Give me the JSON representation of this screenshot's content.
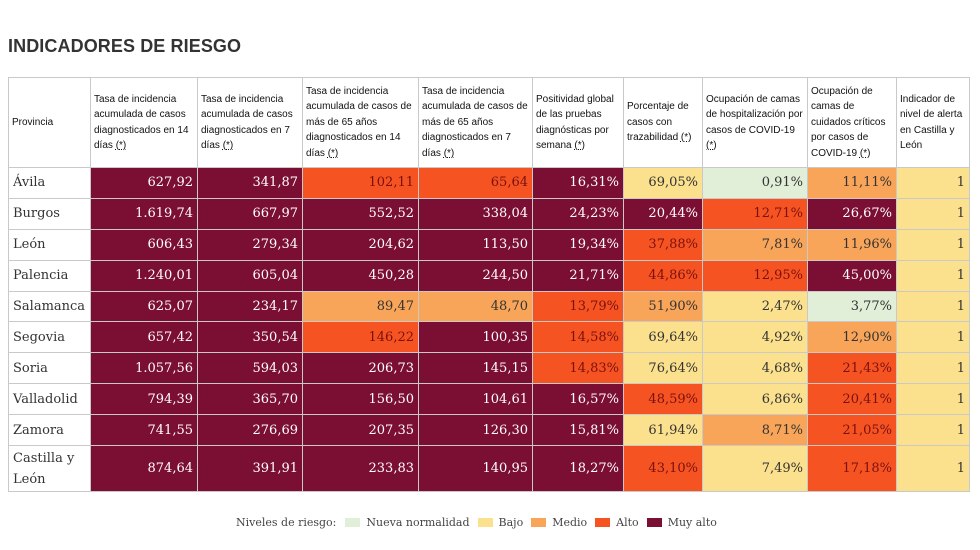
{
  "title": "INDICADORES DE RIESGO",
  "ref_mark": "(*)",
  "colors": {
    "nueva_normalidad": "#e1efd8",
    "bajo": "#fbe08d",
    "medio": "#f8a55a",
    "alto": "#f55422",
    "muy_alto": "#7b0e33"
  },
  "headers": [
    {
      "text": "Provincia",
      "ref": false
    },
    {
      "text": "Tasa de incidencia acumulada de casos diagnosticados en 14 días ",
      "ref": true
    },
    {
      "text": "Tasa de incidencia acumulada de casos diagnosticados en 7 días ",
      "ref": true
    },
    {
      "text": "Tasa de incidencia acumulada de casos de más de 65 años diagnosticados en 14 días ",
      "ref": true
    },
    {
      "text": "Tasa de incidencia acumulada de casos de más de 65 años diagnosticados en 7 días ",
      "ref": true
    },
    {
      "text": "Positividad global de las pruebas diagnósticas por semana ",
      "ref": true
    },
    {
      "text": "Porcentaje de casos con trazabilidad ",
      "ref": true
    },
    {
      "text": "Ocupación de camas de hospitalización por casos de COVID-19 ",
      "ref": true
    },
    {
      "text": "Ocupación de camas de cuidados críticos por casos de COVID-19 ",
      "ref": true
    },
    {
      "text": "Indicador de nivel de alerta en Castilla y León",
      "ref": false
    }
  ],
  "rows": [
    {
      "provincia": "Ávila",
      "cells": [
        {
          "v": "627,92",
          "l": "ma"
        },
        {
          "v": "341,87",
          "l": "ma"
        },
        {
          "v": "102,11",
          "l": "a"
        },
        {
          "v": "65,64",
          "l": "a"
        },
        {
          "v": "16,31%",
          "l": "ma"
        },
        {
          "v": "69,05%",
          "l": "b"
        },
        {
          "v": "0,91%",
          "l": "nn"
        },
        {
          "v": "11,11%",
          "l": "m"
        },
        {
          "v": "1",
          "l": "b"
        }
      ]
    },
    {
      "provincia": "Burgos",
      "cells": [
        {
          "v": "1.619,74",
          "l": "ma"
        },
        {
          "v": "667,97",
          "l": "ma"
        },
        {
          "v": "552,52",
          "l": "ma"
        },
        {
          "v": "338,04",
          "l": "ma"
        },
        {
          "v": "24,23%",
          "l": "ma"
        },
        {
          "v": "20,44%",
          "l": "ma"
        },
        {
          "v": "12,71%",
          "l": "a"
        },
        {
          "v": "26,67%",
          "l": "ma"
        },
        {
          "v": "1",
          "l": "b"
        }
      ]
    },
    {
      "provincia": "León",
      "cells": [
        {
          "v": "606,43",
          "l": "ma"
        },
        {
          "v": "279,34",
          "l": "ma"
        },
        {
          "v": "204,62",
          "l": "ma"
        },
        {
          "v": "113,50",
          "l": "ma"
        },
        {
          "v": "19,34%",
          "l": "ma"
        },
        {
          "v": "37,88%",
          "l": "a"
        },
        {
          "v": "7,81%",
          "l": "m"
        },
        {
          "v": "11,96%",
          "l": "m"
        },
        {
          "v": "1",
          "l": "b"
        }
      ]
    },
    {
      "provincia": "Palencia",
      "cells": [
        {
          "v": "1.240,01",
          "l": "ma"
        },
        {
          "v": "605,04",
          "l": "ma"
        },
        {
          "v": "450,28",
          "l": "ma"
        },
        {
          "v": "244,50",
          "l": "ma"
        },
        {
          "v": "21,71%",
          "l": "ma"
        },
        {
          "v": "44,86%",
          "l": "a"
        },
        {
          "v": "12,95%",
          "l": "a"
        },
        {
          "v": "45,00%",
          "l": "ma"
        },
        {
          "v": "1",
          "l": "b"
        }
      ]
    },
    {
      "provincia": "Salamanca",
      "cells": [
        {
          "v": "625,07",
          "l": "ma"
        },
        {
          "v": "234,17",
          "l": "ma"
        },
        {
          "v": "89,47",
          "l": "m"
        },
        {
          "v": "48,70",
          "l": "m"
        },
        {
          "v": "13,79%",
          "l": "a"
        },
        {
          "v": "51,90%",
          "l": "m"
        },
        {
          "v": "2,47%",
          "l": "b"
        },
        {
          "v": "3,77%",
          "l": "nn"
        },
        {
          "v": "1",
          "l": "b"
        }
      ]
    },
    {
      "provincia": "Segovia",
      "cells": [
        {
          "v": "657,42",
          "l": "ma"
        },
        {
          "v": "350,54",
          "l": "ma"
        },
        {
          "v": "146,22",
          "l": "a"
        },
        {
          "v": "100,35",
          "l": "ma"
        },
        {
          "v": "14,58%",
          "l": "a"
        },
        {
          "v": "69,64%",
          "l": "b"
        },
        {
          "v": "4,92%",
          "l": "b"
        },
        {
          "v": "12,90%",
          "l": "m"
        },
        {
          "v": "1",
          "l": "b"
        }
      ]
    },
    {
      "provincia": "Soria",
      "cells": [
        {
          "v": "1.057,56",
          "l": "ma"
        },
        {
          "v": "594,03",
          "l": "ma"
        },
        {
          "v": "206,73",
          "l": "ma"
        },
        {
          "v": "145,15",
          "l": "ma"
        },
        {
          "v": "14,83%",
          "l": "a"
        },
        {
          "v": "76,64%",
          "l": "b"
        },
        {
          "v": "4,68%",
          "l": "b"
        },
        {
          "v": "21,43%",
          "l": "a"
        },
        {
          "v": "1",
          "l": "b"
        }
      ]
    },
    {
      "provincia": "Valladolid",
      "cells": [
        {
          "v": "794,39",
          "l": "ma"
        },
        {
          "v": "365,70",
          "l": "ma"
        },
        {
          "v": "156,50",
          "l": "ma"
        },
        {
          "v": "104,61",
          "l": "ma"
        },
        {
          "v": "16,57%",
          "l": "ma"
        },
        {
          "v": "48,59%",
          "l": "a"
        },
        {
          "v": "6,86%",
          "l": "b"
        },
        {
          "v": "20,41%",
          "l": "a"
        },
        {
          "v": "1",
          "l": "b"
        }
      ]
    },
    {
      "provincia": "Zamora",
      "cells": [
        {
          "v": "741,55",
          "l": "ma"
        },
        {
          "v": "276,69",
          "l": "ma"
        },
        {
          "v": "207,35",
          "l": "ma"
        },
        {
          "v": "126,30",
          "l": "ma"
        },
        {
          "v": "15,81%",
          "l": "ma"
        },
        {
          "v": "61,94%",
          "l": "b"
        },
        {
          "v": "8,71%",
          "l": "m"
        },
        {
          "v": "21,05%",
          "l": "a"
        },
        {
          "v": "1",
          "l": "b"
        }
      ]
    },
    {
      "provincia": "Castilla y León",
      "cells": [
        {
          "v": "874,64",
          "l": "ma"
        },
        {
          "v": "391,91",
          "l": "ma"
        },
        {
          "v": "233,83",
          "l": "ma"
        },
        {
          "v": "140,95",
          "l": "ma"
        },
        {
          "v": "18,27%",
          "l": "ma"
        },
        {
          "v": "43,10%",
          "l": "a"
        },
        {
          "v": "7,49%",
          "l": "b"
        },
        {
          "v": "17,18%",
          "l": "a"
        },
        {
          "v": "1",
          "l": "b"
        }
      ]
    }
  ],
  "legend": {
    "label": "Niveles de riesgo:",
    "items": [
      {
        "name": "nueva-normalidad",
        "label": "Nueva normalidad",
        "level": "nn"
      },
      {
        "name": "bajo",
        "label": "Bajo",
        "level": "b"
      },
      {
        "name": "medio",
        "label": "Medio",
        "level": "m"
      },
      {
        "name": "alto",
        "label": "Alto",
        "level": "a"
      },
      {
        "name": "muy-alto",
        "label": "Muy alto",
        "level": "ma"
      }
    ]
  }
}
